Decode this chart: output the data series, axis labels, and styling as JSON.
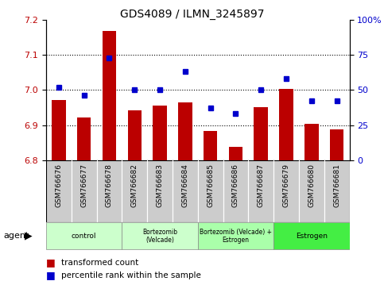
{
  "title": "GDS4089 / ILMN_3245897",
  "samples": [
    "GSM766676",
    "GSM766677",
    "GSM766678",
    "GSM766682",
    "GSM766683",
    "GSM766684",
    "GSM766685",
    "GSM766686",
    "GSM766687",
    "GSM766679",
    "GSM766680",
    "GSM766681"
  ],
  "bar_values": [
    6.972,
    6.922,
    7.168,
    6.942,
    6.955,
    6.965,
    6.882,
    6.838,
    6.952,
    7.002,
    6.904,
    6.888
  ],
  "dot_values": [
    52,
    46,
    73,
    50,
    50,
    63,
    37,
    33,
    50,
    58,
    42,
    42
  ],
  "bar_bottom": 6.8,
  "ylim_left": [
    6.8,
    7.2
  ],
  "ylim_right": [
    0,
    100
  ],
  "yticks_left": [
    6.8,
    6.9,
    7.0,
    7.1,
    7.2
  ],
  "yticks_right": [
    0,
    25,
    50,
    75,
    100
  ],
  "ytick_labels_right": [
    "0",
    "25",
    "50",
    "75",
    "100%"
  ],
  "bar_color": "#BB0000",
  "dot_color": "#0000CC",
  "gridline_color": "#000000",
  "gridlines_at": [
    6.9,
    7.0,
    7.1
  ],
  "groups": [
    {
      "label": "control",
      "start": 0,
      "end": 3,
      "color": "#CCFFCC"
    },
    {
      "label": "Bortezomib\n(Velcade)",
      "start": 3,
      "end": 6,
      "color": "#CCFFCC"
    },
    {
      "label": "Bortezomib (Velcade) +\nEstrogen",
      "start": 6,
      "end": 9,
      "color": "#AAFFAA"
    },
    {
      "label": "Estrogen",
      "start": 9,
      "end": 12,
      "color": "#44EE44"
    }
  ],
  "legend_bar_label": "transformed count",
  "legend_dot_label": "percentile rank within the sample"
}
